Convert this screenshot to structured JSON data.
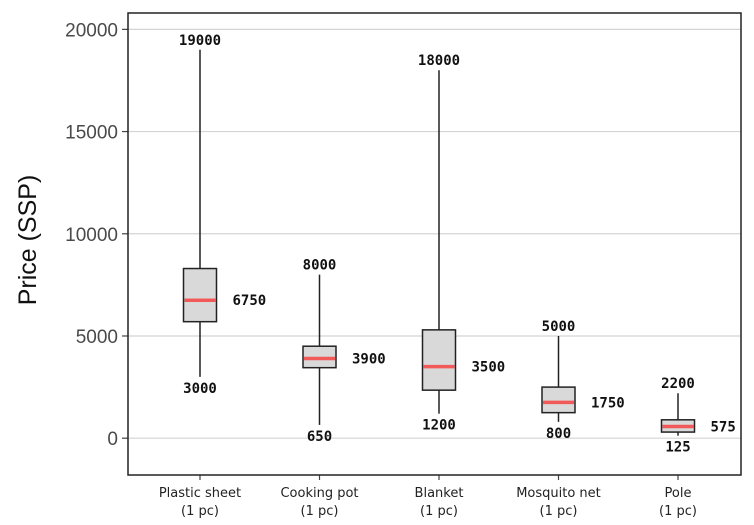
{
  "chart_data": {
    "type": "box",
    "ylabel": "Price (SSP)",
    "xlabel": "",
    "ylim": [
      -1800,
      20800
    ],
    "yticks": [
      0,
      5000,
      10000,
      15000,
      20000
    ],
    "grid": true,
    "categories": [
      {
        "name": "Plastic sheet",
        "unit": "(1 pc)"
      },
      {
        "name": "Cooking pot",
        "unit": "(1 pc)"
      },
      {
        "name": "Blanket",
        "unit": "(1 pc)"
      },
      {
        "name": "Mosquito net",
        "unit": "(1 pc)"
      },
      {
        "name": "Pole",
        "unit": "(1 pc)"
      }
    ],
    "boxes": [
      {
        "min": 3000,
        "q1": 5700,
        "median": 6750,
        "q3": 8300,
        "max": 19000,
        "min_label": "3000",
        "median_label": "6750",
        "max_label": "19000"
      },
      {
        "min": 650,
        "q1": 3450,
        "median": 3900,
        "q3": 4500,
        "max": 8000,
        "min_label": "650",
        "median_label": "3900",
        "max_label": "8000"
      },
      {
        "min": 1200,
        "q1": 2350,
        "median": 3500,
        "q3": 5300,
        "max": 18000,
        "min_label": "1200",
        "median_label": "3500",
        "max_label": "18000"
      },
      {
        "min": 800,
        "q1": 1250,
        "median": 1750,
        "q3": 2500,
        "max": 5000,
        "min_label": "800",
        "median_label": "1750",
        "max_label": "5000"
      },
      {
        "min": 125,
        "q1": 300,
        "median": 575,
        "q3": 900,
        "max": 2200,
        "min_label": "125",
        "median_label": "575",
        "max_label": "2200"
      }
    ],
    "colors": {
      "box_fill": "#d9d9d9",
      "box_stroke": "#222222",
      "median": "#f25a5a",
      "grid": "#d4d4d4",
      "frame": "#222222"
    }
  }
}
